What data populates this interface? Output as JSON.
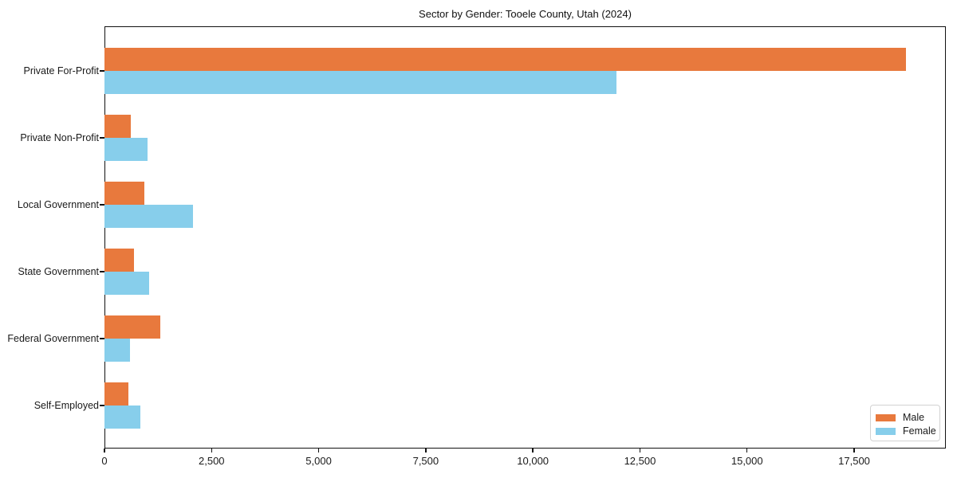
{
  "chart_data": {
    "type": "bar",
    "orientation": "horizontal",
    "title": "Sector by Gender: Tooele County, Utah (2024)",
    "categories": [
      "Private For-Profit",
      "Private Non-Profit",
      "Local Government",
      "State Government",
      "Federal Government",
      "Self-Employed"
    ],
    "series": [
      {
        "name": "Male",
        "color": "#e8793d",
        "values": [
          18700,
          620,
          930,
          680,
          1300,
          550
        ]
      },
      {
        "name": "Female",
        "color": "#87ceeb",
        "values": [
          11950,
          1000,
          2070,
          1050,
          600,
          830
        ]
      }
    ],
    "xlabel": "",
    "ylabel": "",
    "xlim": [
      0,
      19640
    ],
    "xticks": {
      "values": [
        0,
        2500,
        5000,
        7500,
        10000,
        12500,
        15000,
        17500
      ],
      "labels": [
        "0",
        "2,500",
        "5,000",
        "7,500",
        "10,000",
        "12,500",
        "15,000",
        "17,500"
      ]
    },
    "grid": false,
    "legend_position": "lower right",
    "plot_background": "#ffffff",
    "spine_color": "#111111"
  }
}
